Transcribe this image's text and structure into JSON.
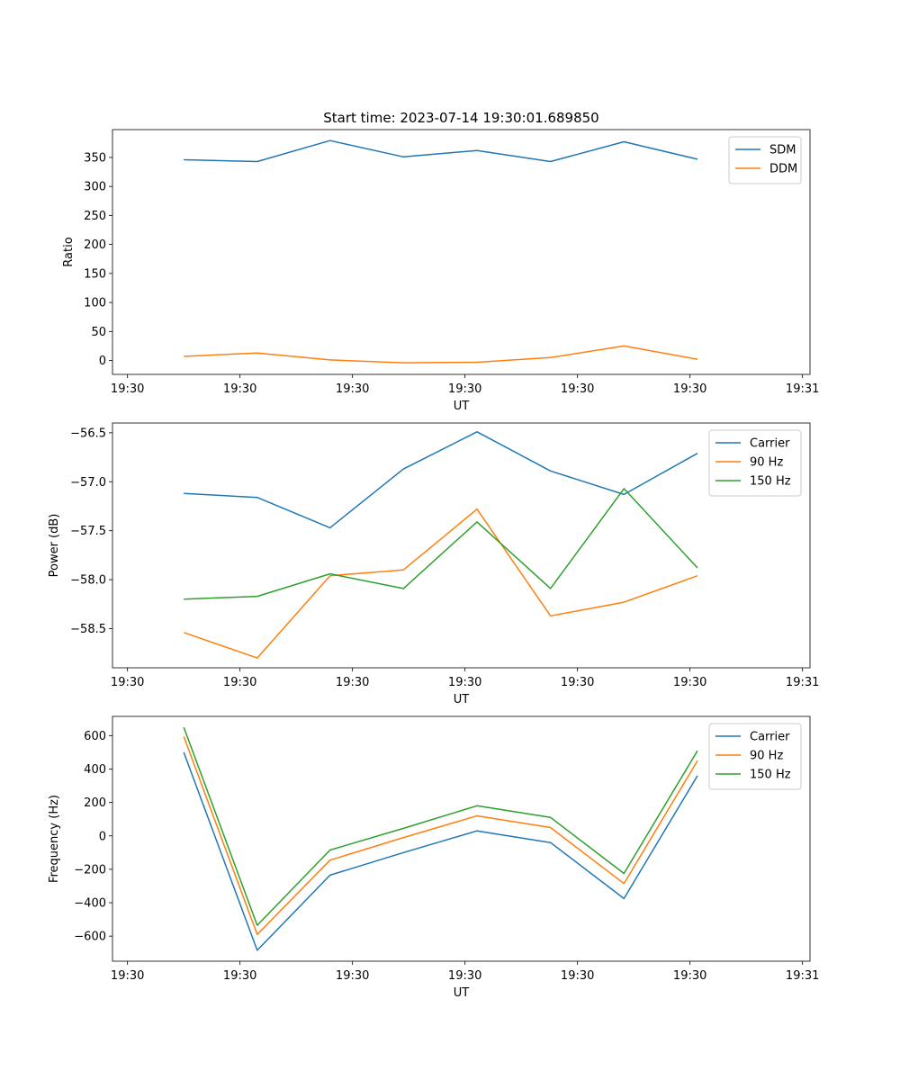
{
  "title": "Start time: 2023-07-14 19:30:01.689850",
  "colors": {
    "blue": "#1f77b4",
    "orange": "#ff7f0e",
    "green": "#2ca02c",
    "axis": "#000000"
  },
  "chart_data": [
    {
      "type": "line",
      "id": "ratio",
      "title": "Start time: 2023-07-14 19:30:01.689850",
      "xlabel": "UT",
      "ylabel": "Ratio",
      "xlim": [
        -0.2,
        9.1
      ],
      "ylim": [
        -24,
        398
      ],
      "xticks": [
        0,
        1.5,
        3,
        4.5,
        6,
        7.5,
        9
      ],
      "xtick_labels": [
        "19:30",
        "19:30",
        "19:30",
        "19:30",
        "19:30",
        "19:30",
        "19:31"
      ],
      "yticks": [
        0,
        50,
        100,
        150,
        200,
        250,
        300,
        350
      ],
      "ytick_labels": [
        "0",
        "50",
        "100",
        "150",
        "200",
        "250",
        "300",
        "350"
      ],
      "legend_position": "top-right",
      "x": [
        0.75,
        1.73,
        2.7,
        3.68,
        4.66,
        5.64,
        6.62,
        7.6
      ],
      "series": [
        {
          "name": "SDM",
          "color": "#1f77b4",
          "values": [
            346,
            343,
            379,
            351,
            362,
            343,
            377,
            347
          ]
        },
        {
          "name": "DDM",
          "color": "#ff7f0e",
          "values": [
            7,
            13,
            1,
            -4,
            -3,
            5,
            25,
            2
          ]
        }
      ]
    },
    {
      "type": "line",
      "id": "power",
      "title": "",
      "xlabel": "UT",
      "ylabel": "Power (dB)",
      "xlim": [
        -0.2,
        9.1
      ],
      "ylim": [
        -58.9,
        -56.4
      ],
      "xticks": [
        0,
        1.5,
        3,
        4.5,
        6,
        7.5,
        9
      ],
      "xtick_labels": [
        "19:30",
        "19:30",
        "19:30",
        "19:30",
        "19:30",
        "19:30",
        "19:31"
      ],
      "yticks": [
        -58.5,
        -58.0,
        -57.5,
        -57.0,
        -56.5
      ],
      "ytick_labels": [
        "−58.5",
        "−58.0",
        "−57.5",
        "−57.0",
        "−56.5"
      ],
      "legend_position": "top-right",
      "x": [
        0.75,
        1.73,
        2.7,
        3.68,
        4.66,
        5.64,
        6.62,
        7.6
      ],
      "series": [
        {
          "name": "Carrier",
          "color": "#1f77b4",
          "values": [
            -57.12,
            -57.16,
            -57.47,
            -56.87,
            -56.49,
            -56.89,
            -57.13,
            -56.71
          ]
        },
        {
          "name": "90 Hz",
          "color": "#ff7f0e",
          "values": [
            -58.54,
            -58.8,
            -57.96,
            -57.9,
            -57.28,
            -58.37,
            -58.23,
            -57.96
          ]
        },
        {
          "name": "150 Hz",
          "color": "#2ca02c",
          "values": [
            -58.2,
            -58.17,
            -57.94,
            -58.09,
            -57.41,
            -58.09,
            -57.07,
            -57.88
          ]
        }
      ]
    },
    {
      "type": "line",
      "id": "frequency",
      "title": "",
      "xlabel": "UT",
      "ylabel": "Frequency (Hz)",
      "xlim": [
        -0.2,
        9.1
      ],
      "ylim": [
        -750,
        715
      ],
      "xticks": [
        0,
        1.5,
        3,
        4.5,
        6,
        7.5,
        9
      ],
      "xtick_labels": [
        "19:30",
        "19:30",
        "19:30",
        "19:30",
        "19:30",
        "19:30",
        "19:31"
      ],
      "yticks": [
        -600,
        -400,
        -200,
        0,
        200,
        400,
        600
      ],
      "ytick_labels": [
        "−600",
        "−400",
        "−200",
        "0",
        "200",
        "400",
        "600"
      ],
      "legend_position": "top-right",
      "x": [
        0.75,
        1.73,
        2.7,
        3.68,
        4.66,
        5.64,
        6.62,
        7.6
      ],
      "series": [
        {
          "name": "Carrier",
          "color": "#1f77b4",
          "values": [
            500,
            -685,
            -235,
            -100,
            30,
            -40,
            -375,
            360
          ]
        },
        {
          "name": "90 Hz",
          "color": "#ff7f0e",
          "values": [
            595,
            -590,
            -145,
            -10,
            120,
            50,
            -285,
            450
          ]
        },
        {
          "name": "150 Hz",
          "color": "#2ca02c",
          "values": [
            650,
            -535,
            -85,
            45,
            180,
            110,
            -225,
            510
          ]
        }
      ]
    }
  ]
}
